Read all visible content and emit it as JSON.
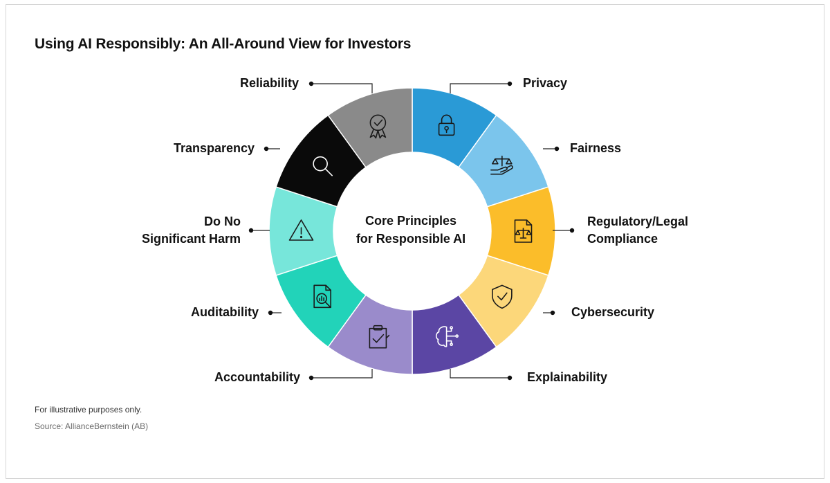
{
  "title": "Using AI Responsibly: An All-Around View for Investors",
  "center": {
    "line1": "Core Principles",
    "line2": "for Responsible AI"
  },
  "segments": [
    {
      "label": "Privacy",
      "color": "#2a9ad6",
      "icon": "lock-icon"
    },
    {
      "label": "Fairness",
      "color": "#7bc5ec",
      "icon": "scales-hand-icon"
    },
    {
      "label": "Regulatory/Legal",
      "label2": "Compliance",
      "color": "#fbbd2a",
      "icon": "legal-document-icon"
    },
    {
      "label": "Cybersecurity",
      "color": "#fcd77a",
      "icon": "shield-check-icon"
    },
    {
      "label": "Explainability",
      "color": "#5b46a4",
      "icon": "brain-circuit-icon"
    },
    {
      "label": "Accountability",
      "color": "#9a8bcb",
      "icon": "clipboard-check-icon"
    },
    {
      "label": "Auditability",
      "color": "#22d3b9",
      "icon": "audit-report-icon"
    },
    {
      "label": "Do No",
      "label2": "Significant Harm",
      "color": "#77e6da",
      "icon": "warning-icon"
    },
    {
      "label": "Transparency",
      "color": "#0a0a0a",
      "icon": "magnifier-icon"
    },
    {
      "label": "Reliability",
      "color": "#8a8a8a",
      "icon": "award-ribbon-icon"
    }
  ],
  "footer": {
    "note": "For illustrative purposes only.",
    "source": "Source: AllianceBernstein (AB)"
  }
}
